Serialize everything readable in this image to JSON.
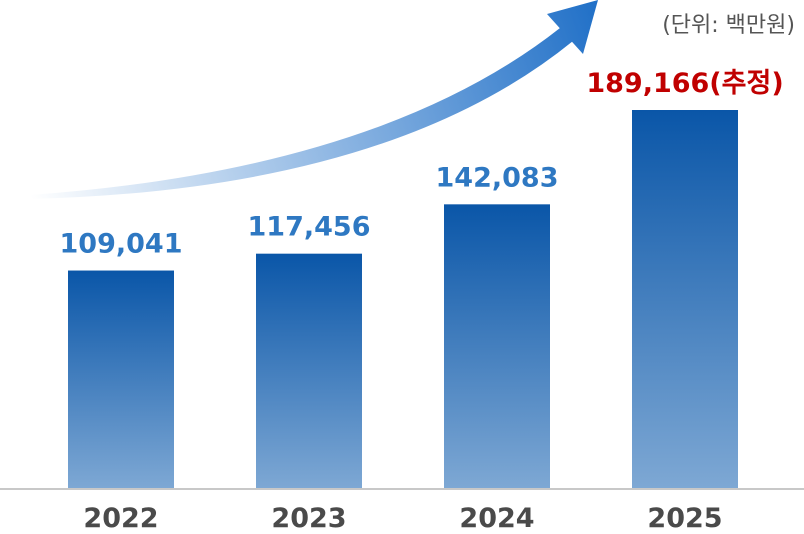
{
  "unit_label": "(단위: 백만원)",
  "colors": {
    "bar_top": "#0a56a8",
    "bar_bottom": "#7ea8d4",
    "label_normal": "#2e78c2",
    "label_highlight": "#c00000",
    "arrow_start": "#ffffff",
    "arrow_end": "#1f6fc7",
    "axis": "#c8c8c8"
  },
  "chart_data": {
    "type": "bar",
    "categories": [
      "2022",
      "2023",
      "2024",
      "2025"
    ],
    "values": [
      109041,
      117456,
      142083,
      189166
    ],
    "value_labels": [
      "109,041",
      "117,456",
      "142,083",
      "189,166(추정)"
    ],
    "highlight_index": 3,
    "unit": "(단위: 백만원)",
    "title": "",
    "xlabel": "",
    "ylabel": "",
    "ylim": [
      0,
      189166
    ],
    "grid": false,
    "trend_arrow": "increasing"
  }
}
